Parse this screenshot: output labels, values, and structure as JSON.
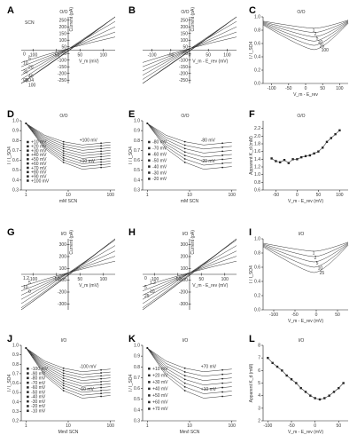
{
  "panels": [
    {
      "letter": "A",
      "title": "O/O",
      "xlabel": "V_m (mV)",
      "ylabel": "Current (pA)",
      "xticks": [
        "-100",
        "-50",
        "50",
        "100"
      ],
      "yticks": [
        "250",
        "200",
        "150",
        "100",
        "50",
        "-50",
        "-100",
        "-150",
        "-200",
        "-250"
      ],
      "curve_labels": [
        "SCN",
        "SO4"
      ],
      "levels": [
        "0",
        "5",
        "10",
        "20",
        "30",
        "40",
        "50",
        "100"
      ]
    },
    {
      "letter": "B",
      "title": "O/O",
      "xlabel": "V_m - E_rev (mV)",
      "ylabel": "Current (pA)",
      "xticks": [
        "-100",
        "-50",
        "0",
        "50",
        "100"
      ],
      "yticks": [
        "250",
        "200",
        "150",
        "100",
        "50",
        "-50",
        "-100",
        "-150",
        "-200",
        "-250"
      ]
    },
    {
      "letter": "C",
      "title": "O/O",
      "xlabel": "V_m - E_rev",
      "ylabel": "I / I_SO4",
      "xticks": [
        "-100",
        "-50",
        "0",
        "50",
        "100"
      ],
      "yticks": [
        "1.0",
        "0.8",
        "0.6",
        "0.4",
        "0.2",
        "0.0"
      ],
      "levels": [
        "1",
        "2",
        "5",
        "10",
        "25",
        "100"
      ]
    },
    {
      "letter": "D",
      "title": "O/O",
      "xlabel": "mM SCN",
      "ylabel": "I / I_SO4",
      "xticks": [
        "1",
        "10",
        "100"
      ],
      "yticks": [
        "1.0",
        "0.9",
        "0.8",
        "0.7",
        "0.6",
        "0.5",
        "0.4",
        "0.3"
      ],
      "legend": [
        "+10 mV",
        "+20 mV",
        "+30 mV",
        "+40 mV",
        "+50 mV",
        "+60 mV",
        "+70 mV",
        "+80 mV",
        "+90 mV",
        "+100 mV"
      ],
      "annotations": [
        "+100 mV",
        "+10 mV"
      ]
    },
    {
      "letter": "E",
      "title": "O/O",
      "xlabel": "mM SCN",
      "ylabel": "I / I_SO4",
      "xticks": [
        "1",
        "10",
        "100"
      ],
      "yticks": [
        "1.0",
        "0.9",
        "0.8",
        "0.7",
        "0.6",
        "0.5",
        "0.4",
        "0.3"
      ],
      "legend": [
        "-80 mV",
        "-70 mV",
        "-60 mV",
        "-50 mV",
        "-40 mV",
        "-30 mV",
        "-20 mV"
      ],
      "annotations": [
        "-80 mV",
        "-20 mV"
      ]
    },
    {
      "letter": "F",
      "title": "O/O",
      "xlabel": "V_m - E_rev (mV)",
      "ylabel": "Apparent K_d (mM)",
      "xticks": [
        "-50",
        "0",
        "50",
        "100"
      ],
      "yticks": [
        "2.2",
        "2.0",
        "1.8",
        "1.6",
        "1.4",
        "1.2",
        "1.0",
        "0.8",
        "0.6"
      ]
    },
    {
      "letter": "G",
      "title": "I/O",
      "xlabel": "V_m (mV)",
      "ylabel": "Current (pA)",
      "xticks": [
        "-100",
        "-50",
        "50",
        "100"
      ],
      "yticks": [
        "300",
        "200",
        "100",
        "-100",
        "-200",
        "-300"
      ],
      "levels": [
        "1.2",
        "5",
        "10",
        "0"
      ]
    },
    {
      "letter": "H",
      "title": "I/O",
      "xlabel": "V_m - E_rev (mV)",
      "ylabel": "Current (pA)",
      "xticks": [
        "-100",
        "-50",
        "50",
        "100"
      ],
      "yticks": [
        "300",
        "200",
        "100",
        "-100",
        "-200",
        "-300"
      ],
      "levels": [
        "0",
        "1.2",
        "5",
        "10",
        "25"
      ]
    },
    {
      "letter": "I",
      "title": "I/O",
      "xlabel": "V_m - E_rev (mV)",
      "ylabel": "I / I_SO4",
      "xticks": [
        "-100",
        "-50",
        "0",
        "50"
      ],
      "yticks": [
        "1.0",
        "0.8",
        "0.6",
        "0.4",
        "0.2",
        "0.0"
      ],
      "levels": [
        "1",
        "2",
        "5",
        "10",
        "25"
      ]
    },
    {
      "letter": "J",
      "title": "I/O",
      "xlabel": "Mm/l SCN",
      "ylabel": "I / I_SO4",
      "xticks": [
        "1",
        "10",
        "100"
      ],
      "yticks": [
        "1.0",
        "0.9",
        "0.8",
        "0.7",
        "0.6",
        "0.5",
        "0.4",
        "0.3",
        "0.2"
      ],
      "legend": [
        "-100 mV",
        "-90 mV",
        "-80 mV",
        "-70 mV",
        "-60 mV",
        "-50 mV",
        "-40 mV",
        "-30 mV",
        "-20 mV",
        "-10 mV"
      ],
      "annotations": [
        "-100 mV",
        "-10 mV"
      ]
    },
    {
      "letter": "K",
      "title": "I/O",
      "xlabel": "Mm/l SCN",
      "ylabel": "I / I_SO4",
      "xticks": [
        "1",
        "10",
        "100"
      ],
      "yticks": [
        "1.0",
        "0.9",
        "0.8",
        "0.7",
        "0.6",
        "0.5",
        "0.4",
        "0.3"
      ],
      "legend": [
        "+10 mV",
        "+20 mV",
        "+30 mV",
        "+40 mV",
        "+50 mV",
        "+60 mV",
        "+70 mV"
      ],
      "annotations": [
        "+70 mV",
        "+10 mV"
      ]
    },
    {
      "letter": "L",
      "title": "I/O",
      "xlabel": "V_m - E_rev (mV)",
      "ylabel": "Apparent K_d (mM)",
      "xticks": [
        "-100",
        "-50",
        "0",
        "50"
      ],
      "yticks": [
        "8",
        "7",
        "6",
        "5",
        "4",
        "3",
        "2"
      ]
    }
  ],
  "chart_data": [
    {
      "panel": "F",
      "type": "scatter",
      "x": [
        -60,
        -50,
        -40,
        -30,
        -20,
        -10,
        0,
        10,
        20,
        30,
        40,
        50,
        60,
        70,
        80,
        90,
        100
      ],
      "y": [
        1.42,
        1.35,
        1.32,
        1.38,
        1.3,
        1.4,
        1.4,
        1.45,
        1.48,
        1.5,
        1.55,
        1.6,
        1.7,
        1.85,
        1.95,
        2.05,
        2.15
      ],
      "xlim": [
        -80,
        120
      ],
      "ylim": [
        0.6,
        2.4
      ]
    },
    {
      "panel": "L",
      "type": "scatter",
      "x": [
        -100,
        -90,
        -80,
        -70,
        -60,
        -50,
        -40,
        -30,
        -20,
        -10,
        0,
        10,
        20,
        30,
        40,
        50,
        60
      ],
      "y": [
        7.0,
        6.6,
        6.3,
        6.0,
        5.6,
        5.3,
        5.0,
        4.6,
        4.3,
        4.0,
        3.8,
        3.7,
        3.8,
        4.0,
        4.3,
        4.6,
        5.0
      ],
      "xlim": [
        -110,
        70
      ],
      "ylim": [
        2,
        8
      ]
    }
  ]
}
